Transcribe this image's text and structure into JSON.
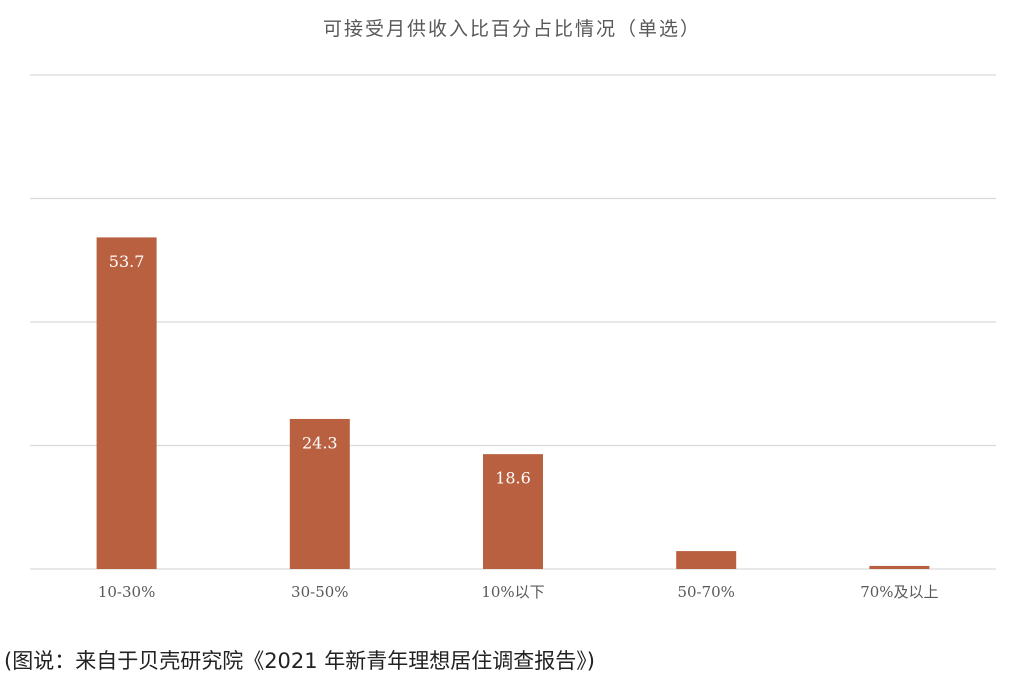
{
  "chart_data": {
    "type": "bar",
    "title": "可接受月供收入比百分占比情况（单选）",
    "categories": [
      "10-30%",
      "30-50%",
      "10%以下",
      "50-70%",
      "70%及以上"
    ],
    "values": [
      53.7,
      24.3,
      18.6,
      2.9,
      0.5
    ],
    "value_labels": [
      "53.7",
      "24.3",
      "18.6",
      null,
      null
    ],
    "color": "#b8603f",
    "ylim": [
      0,
      80
    ],
    "yticks": [
      0,
      20,
      40,
      60,
      80
    ],
    "grid": true
  },
  "caption": "(图说：来自于贝壳研究院《2021 年新青年理想居住调查报告》)"
}
